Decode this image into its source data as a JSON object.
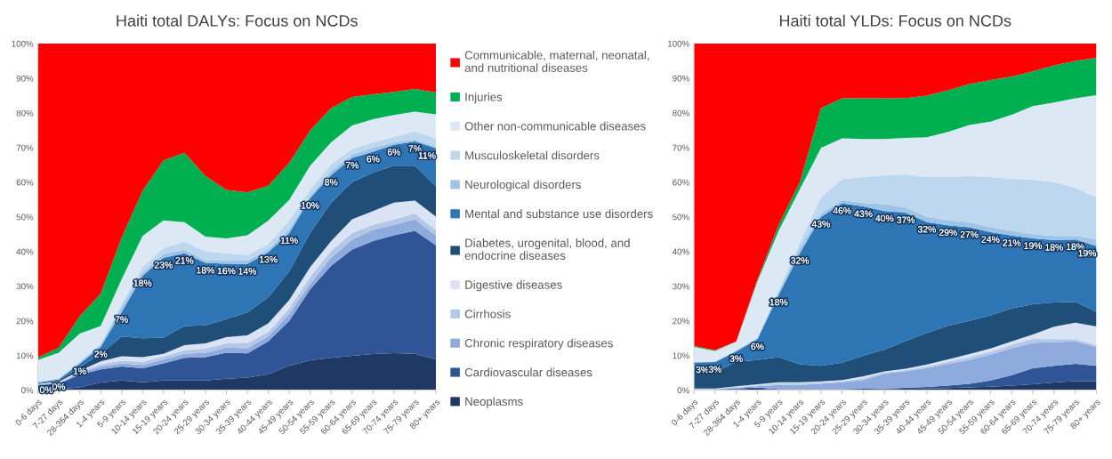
{
  "chart_data": [
    {
      "type": "area",
      "title": "Haiti total DALYs: Focus on NCDs",
      "stacked": true,
      "legend": "right",
      "categories": [
        "0-6 days",
        "7-27 days",
        "28-364 days",
        "1-4 years",
        "5-9 years",
        "10-14 years",
        "15-19 years",
        "20-24 years",
        "25-29 years",
        "30-34 years",
        "35-39 years",
        "40-44 years",
        "45-49 years",
        "50-54 years",
        "55-59 years",
        "60-64 years",
        "65-69 years",
        "70-74 years",
        "75-79 years",
        "80+ years"
      ],
      "ylim": [
        0,
        100
      ],
      "yticks": [
        {
          "value": 0,
          "label": "0%"
        },
        {
          "value": 10,
          "label": "10%"
        },
        {
          "value": 20,
          "label": "20%"
        },
        {
          "value": 30,
          "label": "30%"
        },
        {
          "value": 40,
          "label": "40%"
        },
        {
          "value": 50,
          "label": "50%"
        },
        {
          "value": 60,
          "label": "60%"
        },
        {
          "value": 70,
          "label": "70%"
        },
        {
          "value": 80,
          "label": "80%"
        },
        {
          "value": 90,
          "label": "90%"
        },
        {
          "value": 100,
          "label": "100%"
        }
      ],
      "series": [
        {
          "name": "Neoplasms",
          "color": "#203864",
          "values": [
            0.2,
            0.3,
            0.8,
            2.2,
            2.8,
            2.3,
            2.8,
            2.8,
            2.8,
            3.3,
            3.6,
            4.6,
            7,
            8.6,
            9.3,
            9.9,
            10.4,
            10.7,
            10.5,
            8.9
          ]
        },
        {
          "name": "Cardiovascular diseases",
          "color": "#2f5597",
          "values": [
            1.3,
            1.5,
            3.7,
            3.8,
            4.0,
            4.0,
            4.9,
            6.5,
            6.7,
            7.5,
            7.0,
            9.5,
            13,
            20.5,
            26.6,
            30.7,
            32.6,
            34,
            35.5,
            32.9
          ]
        },
        {
          "name": "Chronic respiratory diseases",
          "color": "#8faadc",
          "values": [
            0.1,
            0.2,
            0.5,
            0.8,
            0.9,
            1.0,
            1.1,
            1.2,
            1.3,
            1.5,
            1.5,
            1.4,
            2,
            1.6,
            2.3,
            2.8,
            3.2,
            3,
            3.3,
            2.8
          ]
        },
        {
          "name": "Cirrhosis",
          "color": "#b4c7e7",
          "values": [
            0.1,
            0.2,
            0.3,
            0.7,
            0.8,
            0.9,
            0.9,
            1.0,
            1.2,
            1.2,
            1.4,
            1.3,
            1.6,
            2,
            2,
            2,
            1.5,
            1.6,
            1.6,
            1.6
          ]
        },
        {
          "name": "Digestive diseases",
          "color": "#dae3f3",
          "values": [
            0.1,
            0.2,
            0.3,
            0.8,
            1.3,
            1.3,
            0.8,
            1.5,
            1.5,
            1.8,
            2.3,
            2.5,
            2.4,
            2.8,
            2.8,
            3.9,
            4,
            4.8,
            3.8,
            3.9
          ]
        },
        {
          "name": "Diabetes, urogenital, blood, and\nendocrine diseases",
          "color": "#1f4e79",
          "values": [
            0.1,
            0.4,
            1.0,
            2.2,
            5.7,
            5.5,
            4.7,
            5.5,
            5.2,
            5.2,
            6.6,
            7.5,
            8.3,
            9.9,
            11.1,
            10.7,
            11.1,
            10.7,
            10.1,
            8.7
          ]
        },
        {
          "name": "Mental and substance use disorders",
          "color": "#2e75b6",
          "values": [
            0.3,
            0.3,
            1,
            2,
            7,
            18,
            23,
            21,
            18,
            16,
            14,
            13,
            11,
            10,
            8,
            7,
            6,
            6,
            7,
            11
          ],
          "value_labels": [
            "0%",
            "0%",
            "1%",
            "2%",
            "7%",
            "18%",
            "23%",
            "21%",
            "18%",
            "16%",
            "14%",
            "13%",
            "11%",
            "10%",
            "8%",
            "7%",
            "6%",
            "6%",
            "7%",
            "11%"
          ]
        },
        {
          "name": "Neurological disorders",
          "color": "#9dc3e6",
          "values": [
            0.1,
            0.2,
            0.4,
            0.5,
            1.5,
            1.0,
            1.1,
            1.0,
            0.8,
            0.8,
            1.0,
            0.8,
            1.2,
            0.7,
            1.2,
            1,
            1.2,
            0.7,
            0.5,
            0.5
          ]
        },
        {
          "name": "Musculoskeletal disorders",
          "color": "#bdd7ee",
          "values": [
            0.1,
            0.1,
            0.4,
            0.5,
            1.0,
            1.5,
            1.7,
            2.3,
            2.5,
            2.2,
            1.6,
            1.6,
            2.4,
            1.9,
            1.9,
            1.5,
            1.5,
            1.6,
            2.4,
            2.4
          ]
        },
        {
          "name": "Other non-communicable diseases",
          "color": "#dde8f5",
          "values": [
            6.3,
            7.4,
            7.9,
            5.0,
            7.0,
            9.0,
            8,
            5.7,
            4.3,
            4.3,
            5.7,
            6.7,
            6,
            6.8,
            6.3,
            6.9,
            6.7,
            6.3,
            5.7,
            6.9
          ]
        },
        {
          "name": "Injuries",
          "color": "#00b050",
          "values": [
            0.7,
            1.5,
            5.0,
            9.3,
            12.0,
            13.0,
            17.3,
            20,
            17.5,
            14,
            12.4,
            10.1,
            10.7,
            10.2,
            9.9,
            8.2,
            7.2,
            6.7,
            6.5,
            6.3
          ]
        },
        {
          "name": "Communicable, maternal, neonatal,\nand nutritional diseases",
          "color": "#ff0000",
          "values": [
            90.6,
            87.7,
            78.7,
            72.2,
            56,
            42.5,
            33.7,
            31.5,
            38.2,
            42.2,
            42.9,
            41,
            34.4,
            25,
            18.6,
            15.4,
            14.6,
            13.9,
            13.1,
            14.1
          ]
        }
      ]
    },
    {
      "type": "area",
      "title": "Haiti total YLDs: Focus on NCDs",
      "stacked": true,
      "categories": [
        "0-6 days",
        "7-27 days",
        "28-364 days",
        "1-4 years",
        "5-9 years",
        "10-14 years",
        "15-19 years",
        "20-24 years",
        "25-29 years",
        "30-34 years",
        "35-39 years",
        "40-44 years",
        "45-49 years",
        "50-54 years",
        "55-59 years",
        "60-64 years",
        "65-69 years",
        "70-74 years",
        "75-79 years",
        "80+ years"
      ],
      "ylim": [
        0,
        100
      ],
      "yticks": [
        {
          "value": 0,
          "label": "0%"
        },
        {
          "value": 10,
          "label": "10%"
        },
        {
          "value": 20,
          "label": "20%"
        },
        {
          "value": 30,
          "label": "30%"
        },
        {
          "value": 40,
          "label": "40%"
        },
        {
          "value": 50,
          "label": "50%"
        },
        {
          "value": 60,
          "label": "60%"
        },
        {
          "value": 70,
          "label": "70%"
        },
        {
          "value": 80,
          "label": "80%"
        },
        {
          "value": 90,
          "label": "90%"
        },
        {
          "value": 100,
          "label": "100%"
        }
      ],
      "series": [
        {
          "color": "#203864",
          "values": [
            0.1,
            0.1,
            0.3,
            0.5,
            0.1,
            0.1,
            0.1,
            0.1,
            0.1,
            0.3,
            0.4,
            0.5,
            0.6,
            0.8,
            1,
            1.3,
            1.7,
            2.2,
            2.6,
            2.6
          ]
        },
        {
          "color": "#2f5597",
          "values": [
            0.1,
            0.1,
            0.2,
            0.3,
            0.2,
            0.2,
            0.2,
            0.2,
            0.3,
            0.2,
            0.3,
            0.4,
            0.7,
            1.0,
            1.8,
            3.0,
            4.6,
            4.8,
            5,
            4.4
          ]
        },
        {
          "color": "#8faadc",
          "values": [
            0.1,
            0.1,
            0.2,
            0.3,
            1.2,
            1.2,
            1.5,
            2.0,
            2.5,
            4.3,
            4.8,
            5.5,
            6.3,
            6.9,
            7.5,
            7.8,
            7.3,
            6.9,
            6.5,
            5.5
          ]
        },
        {
          "color": "#b4c7e7",
          "values": [
            0.1,
            0.1,
            0.2,
            0.3,
            0.5,
            0.5,
            0.4,
            0.3,
            0.5,
            0.3,
            0.3,
            0.4,
            0.6,
            0.8,
            0.8,
            1.0,
            1.2,
            0.8,
            0.6,
            0.5
          ]
        },
        {
          "color": "#dae3f3",
          "values": [
            0.1,
            0.1,
            0.2,
            0.3,
            0.3,
            0.3,
            0.3,
            0.3,
            0.6,
            0.3,
            0.4,
            0.6,
            0.7,
            0.9,
            0.9,
            1.0,
            1.3,
            3.6,
            4.8,
            5.4
          ]
        },
        {
          "color": "#1f4e79",
          "values": [
            4.5,
            4.6,
            7.1,
            7.0,
            7.2,
            5.2,
            4.5,
            5,
            6,
            6.3,
            8.0,
            9.1,
            9.7,
            9.6,
            9.6,
            9.5,
            8.7,
            7,
            6,
            4.2
          ]
        },
        {
          "color": "#2e75b6",
          "values": [
            3,
            3,
            3,
            6,
            18,
            32,
            43,
            46,
            43,
            40,
            37,
            32,
            29,
            27,
            24,
            21,
            19,
            18,
            18,
            19
          ],
          "value_labels": [
            "3%",
            "3%",
            "3%",
            "6%",
            "18%",
            "32%",
            "43%",
            "46%",
            "43%",
            "40%",
            "37%",
            "32%",
            "29%",
            "27%",
            "24%",
            "21%",
            "19%",
            "18%",
            "18%",
            "19%"
          ]
        },
        {
          "color": "#9dc3e6",
          "values": [
            0.1,
            0.1,
            0.2,
            0.3,
            0.8,
            1.5,
            1,
            1,
            1,
            2,
            1.5,
            1.5,
            1.4,
            1.5,
            1.4,
            1.4,
            1.2,
            1.2,
            1,
            2
          ]
        },
        {
          "color": "#bdd7ee",
          "values": [
            0.1,
            0.1,
            0.2,
            0.3,
            0.7,
            1.5,
            4.7,
            6,
            7.5,
            8.3,
            9.6,
            11.5,
            12.5,
            13.3,
            14.5,
            15,
            15.8,
            15.5,
            14,
            12
          ]
        },
        {
          "color": "#dde8f5",
          "values": [
            4.3,
            3.0,
            2.4,
            16.1,
            17,
            15.5,
            14.2,
            11.8,
            11,
            10.5,
            10.5,
            11.5,
            13,
            14.7,
            16,
            18.5,
            21.2,
            23,
            25.7,
            29.5
          ]
        },
        {
          "color": "#00b050",
          "values": [
            0.3,
            0.2,
            0.1,
            0.5,
            1.7,
            2,
            11.5,
            11.5,
            11.7,
            11.7,
            11.5,
            12,
            12,
            11.8,
            12,
            11,
            10,
            10.7,
            10.8,
            10.8
          ]
        },
        {
          "color": "#ff0000",
          "values": [
            87.2,
            88.5,
            85.9,
            68.1,
            52.3,
            40,
            18.6,
            15.8,
            15.8,
            15.8,
            15.7,
            15,
            13.5,
            11.7,
            10.5,
            9.5,
            8,
            6.3,
            5,
            4.1
          ]
        }
      ]
    }
  ]
}
